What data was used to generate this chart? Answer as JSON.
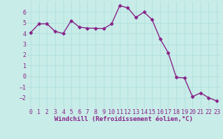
{
  "x": [
    0,
    1,
    2,
    3,
    4,
    5,
    6,
    7,
    8,
    9,
    10,
    11,
    12,
    13,
    14,
    15,
    16,
    17,
    18,
    19,
    20,
    21,
    22,
    23
  ],
  "y": [
    4.1,
    4.9,
    4.9,
    4.2,
    4.0,
    5.2,
    4.6,
    4.5,
    4.5,
    4.45,
    4.9,
    6.6,
    6.4,
    5.5,
    6.0,
    5.3,
    3.5,
    2.2,
    -0.1,
    -0.15,
    -1.9,
    -1.55,
    -2.0,
    -2.3
  ],
  "line_color": "#882288",
  "marker": "D",
  "markersize": 2.5,
  "linewidth": 1.0,
  "bg_color": "#c8ece8",
  "grid_color": "#aadddd",
  "xlabel": "Windchill (Refroidissement éolien,°C)",
  "xlabel_color": "#882288",
  "xlabel_fontsize": 6.5,
  "tick_color": "#882288",
  "tick_fontsize": 6,
  "ylim": [
    -3,
    7
  ],
  "xlim": [
    -0.5,
    23.5
  ],
  "yticks": [
    -2,
    -1,
    0,
    1,
    2,
    3,
    4,
    5,
    6
  ],
  "xticks": [
    0,
    1,
    2,
    3,
    4,
    5,
    6,
    7,
    8,
    9,
    10,
    11,
    12,
    13,
    14,
    15,
    16,
    17,
    18,
    19,
    20,
    21,
    22,
    23
  ]
}
